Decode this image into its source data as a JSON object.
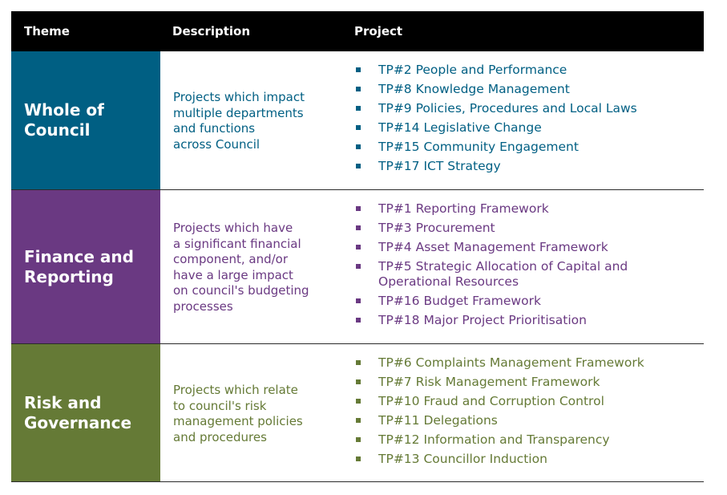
{
  "header": {
    "theme": "Theme",
    "description": "Description",
    "project": "Project"
  },
  "rows": [
    {
      "theme": "Whole of\nCouncil",
      "color": "#005f83",
      "description": "Projects which impact\nmultiple departments\nand functions\nacross Council",
      "projects": [
        "TP#2 People and Performance",
        "TP#8 Knowledge Management",
        "TP#9 Policies, Procedures and Local Laws",
        "TP#14 Legislative Change",
        "TP#15 Community Engagement",
        "TP#17 ICT Strategy"
      ]
    },
    {
      "theme": "Finance and\nReporting",
      "color": "#6a3982",
      "description": "Projects which have\na significant financial\ncomponent, and/or\nhave a large impact\non council's budgeting\nprocesses",
      "projects": [
        "TP#1 Reporting Framework",
        "TP#3 Procurement",
        "TP#4 Asset Management Framework",
        "TP#5 Strategic Allocation of Capital and\nOperational Resources",
        "TP#16 Budget Framework",
        "TP#18 Major Project Prioritisation"
      ]
    },
    {
      "theme": "Risk and\nGovernance",
      "color": "#657a36",
      "description": "Projects which relate\nto council's risk\nmanagement policies\nand procedures",
      "projects": [
        "TP#6 Complaints Management Framework",
        "TP#7 Risk Management Framework",
        "TP#10 Fraud and Corruption Control",
        "TP#11 Delegations",
        "TP#12 Information and Transparency",
        "TP#13 Councillor Induction"
      ]
    }
  ]
}
